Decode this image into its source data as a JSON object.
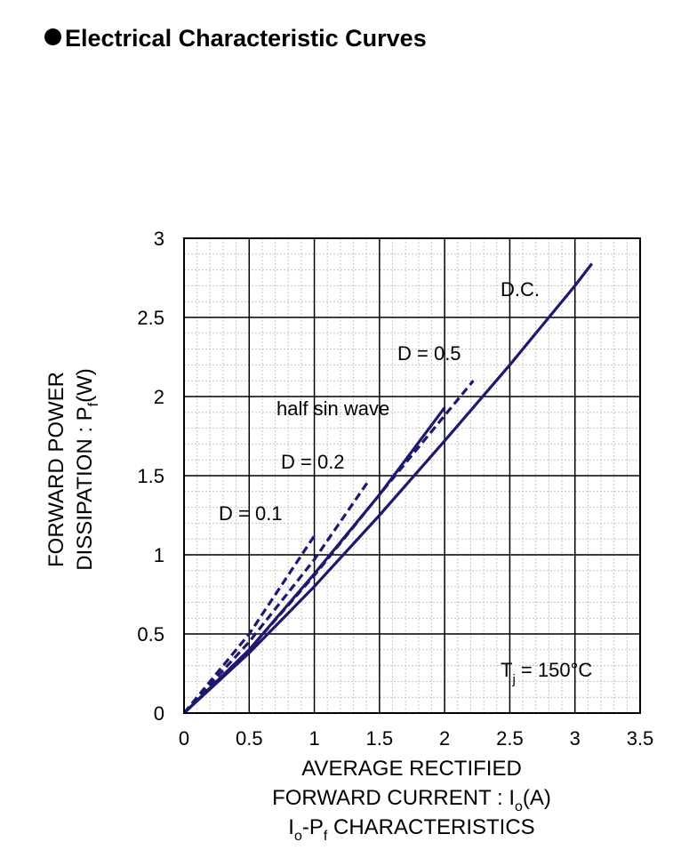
{
  "heading": "Electrical Characteristic Curves",
  "chart_data": {
    "type": "line",
    "title": "",
    "xlabel_line1": "AVERAGE RECTIFIED",
    "xlabel_line2": "FORWARD CURRENT : I",
    "xlabel_line2_sub": "o",
    "xlabel_line2_tail": "(A)",
    "caption_main_a": "I",
    "caption_sub_a": "o",
    "caption_main_b": "-P",
    "caption_sub_b": "f",
    "caption_tail": " CHARACTERISTICS",
    "ylabel_line1": "FORWARD POWER",
    "ylabel_line2": "DISSIPATION : P",
    "ylabel_line2_sub": "f",
    "ylabel_line2_tail": "(W)",
    "xlim": [
      0,
      3.5
    ],
    "ylim": [
      0,
      3
    ],
    "x_ticks": [
      "0",
      "0.5",
      "1",
      "1.5",
      "2",
      "2.5",
      "3",
      "3.5"
    ],
    "y_ticks": [
      "0",
      "0.5",
      "1",
      "1.5",
      "2",
      "2.5",
      "3"
    ],
    "grid": true,
    "temperature_label": "T",
    "temperature_sub": "j",
    "temperature_tail": " = 150°C",
    "line_color": "#1b1a6e",
    "series": [
      {
        "name": "D.C.",
        "style": "solid",
        "x": [
          0,
          0.5,
          1,
          1.5,
          2,
          2.5,
          3,
          3.13
        ],
        "y": [
          0,
          0.38,
          0.8,
          1.25,
          1.72,
          2.2,
          2.7,
          2.84
        ]
      },
      {
        "name": "half sin wave",
        "style": "solid",
        "x": [
          0,
          0.5,
          1,
          1.5,
          2
        ],
        "y": [
          0,
          0.4,
          0.88,
          1.38,
          1.93
        ]
      },
      {
        "name": "D = 0.5",
        "style": "dashed",
        "x": [
          0,
          0.5,
          1,
          1.5,
          2,
          2.22
        ],
        "y": [
          0,
          0.4,
          0.87,
          1.38,
          1.88,
          2.1
        ]
      },
      {
        "name": "D = 0.2",
        "style": "dashed",
        "x": [
          0,
          0.5,
          1,
          1.41
        ],
        "y": [
          0,
          0.45,
          0.97,
          1.46
        ]
      },
      {
        "name": "D = 0.1",
        "style": "dashed",
        "x": [
          0,
          0.5,
          1
        ],
        "y": [
          0,
          0.5,
          1.12
        ]
      }
    ]
  }
}
